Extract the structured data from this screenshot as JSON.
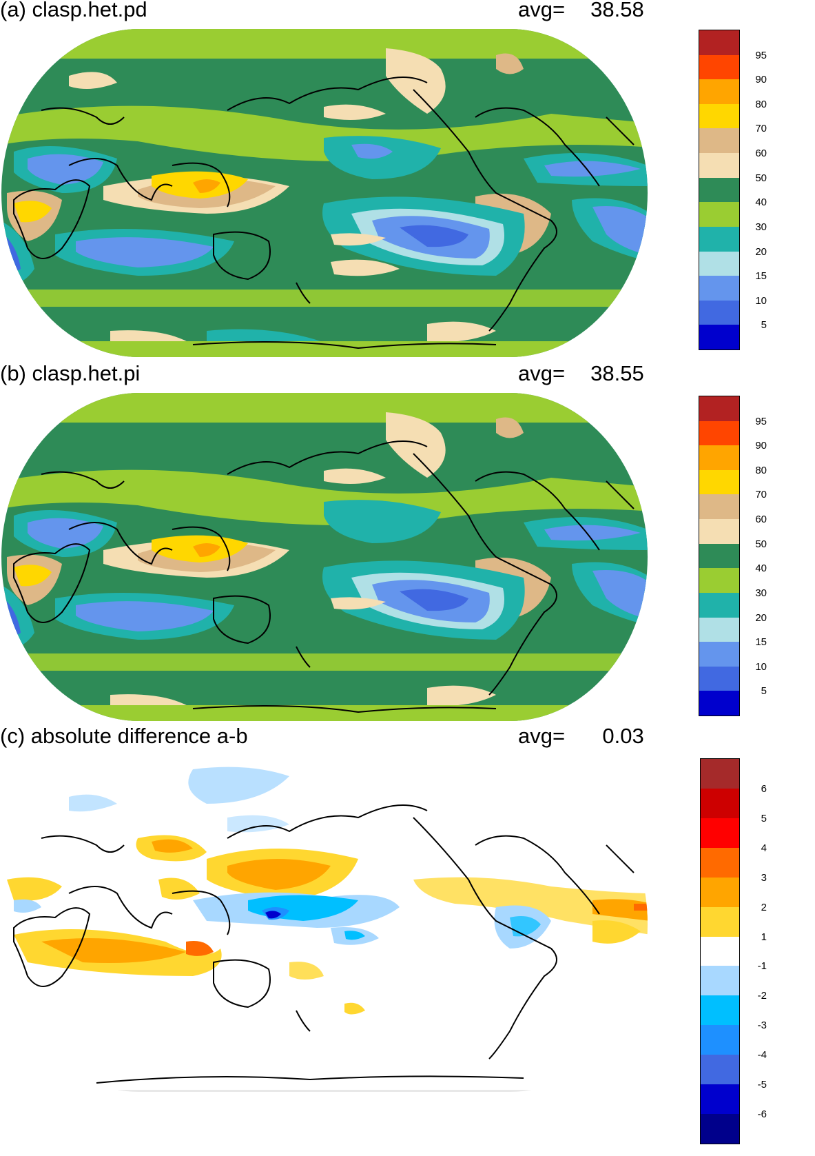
{
  "panels": [
    {
      "title": "(a) clasp.het.pd",
      "avg_label": "avg=",
      "avg_value": "38.58",
      "colorbar": {
        "labels": [
          "95",
          "90",
          "80",
          "70",
          "60",
          "50",
          "40",
          "30",
          "20",
          "15",
          "10",
          "5"
        ],
        "colors": [
          "#b22222",
          "#ff4500",
          "#ffa500",
          "#ffd700",
          "#deb887",
          "#f5deb3",
          "#2e8b57",
          "#9acd32",
          "#20b2aa",
          "#b0e0e6",
          "#6495ed",
          "#4169e1",
          "#0000cd"
        ]
      }
    },
    {
      "title": "(b) clasp.het.pi",
      "avg_label": "avg=",
      "avg_value": "38.55",
      "colorbar": {
        "labels": [
          "95",
          "90",
          "80",
          "70",
          "60",
          "50",
          "40",
          "30",
          "20",
          "15",
          "10",
          "5"
        ],
        "colors": [
          "#b22222",
          "#ff4500",
          "#ffa500",
          "#ffd700",
          "#deb887",
          "#f5deb3",
          "#2e8b57",
          "#9acd32",
          "#20b2aa",
          "#b0e0e6",
          "#6495ed",
          "#4169e1",
          "#0000cd"
        ]
      }
    },
    {
      "title": "(c) absolute difference a-b",
      "avg_label": "avg=",
      "avg_value": "0.03",
      "colorbar": {
        "labels": [
          "6",
          "5",
          "4",
          "3",
          "2",
          "1",
          "-1",
          "-2",
          "-3",
          "-4",
          "-5",
          "-6"
        ],
        "colors": [
          "#a52a2a",
          "#cd0000",
          "#ff0000",
          "#ff6a00",
          "#ffa500",
          "#ffd730",
          "#ffffff",
          "#a8d8ff",
          "#00bfff",
          "#1e90ff",
          "#4169e1",
          "#0000cd",
          "#00008b"
        ]
      }
    }
  ]
}
